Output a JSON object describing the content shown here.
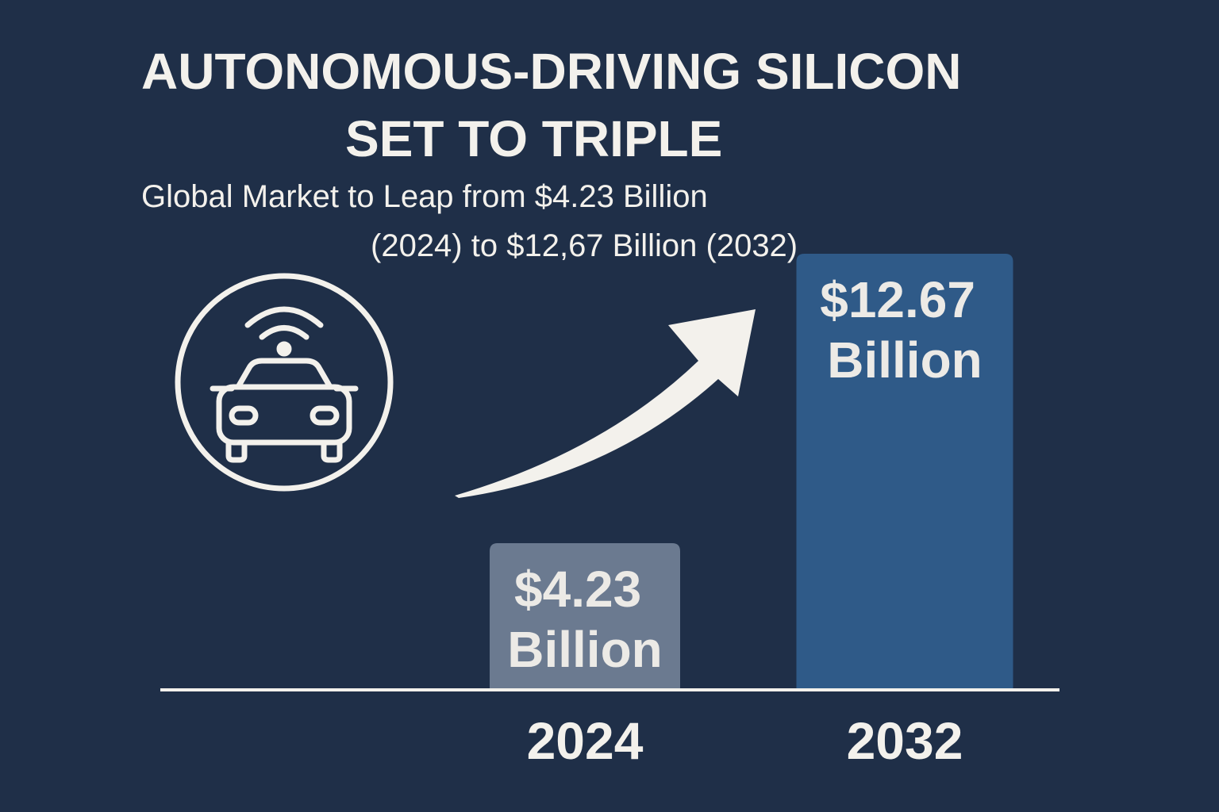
{
  "chart_data": {
    "type": "bar",
    "title": "AUTONOMOUS-DRIVING SILICON SET TO TRIPLE",
    "subtitle": "Global Market to Leap from $4.23 Billion (2024) to $12,67 Billion (2032)",
    "categories": [
      "2024",
      "2032"
    ],
    "values": [
      4.23,
      12.67
    ],
    "value_labels": [
      "$4.23 Billion",
      "$12.67 Billion"
    ],
    "colors": [
      "#6b7a90",
      "#2f5a88"
    ]
  }
}
